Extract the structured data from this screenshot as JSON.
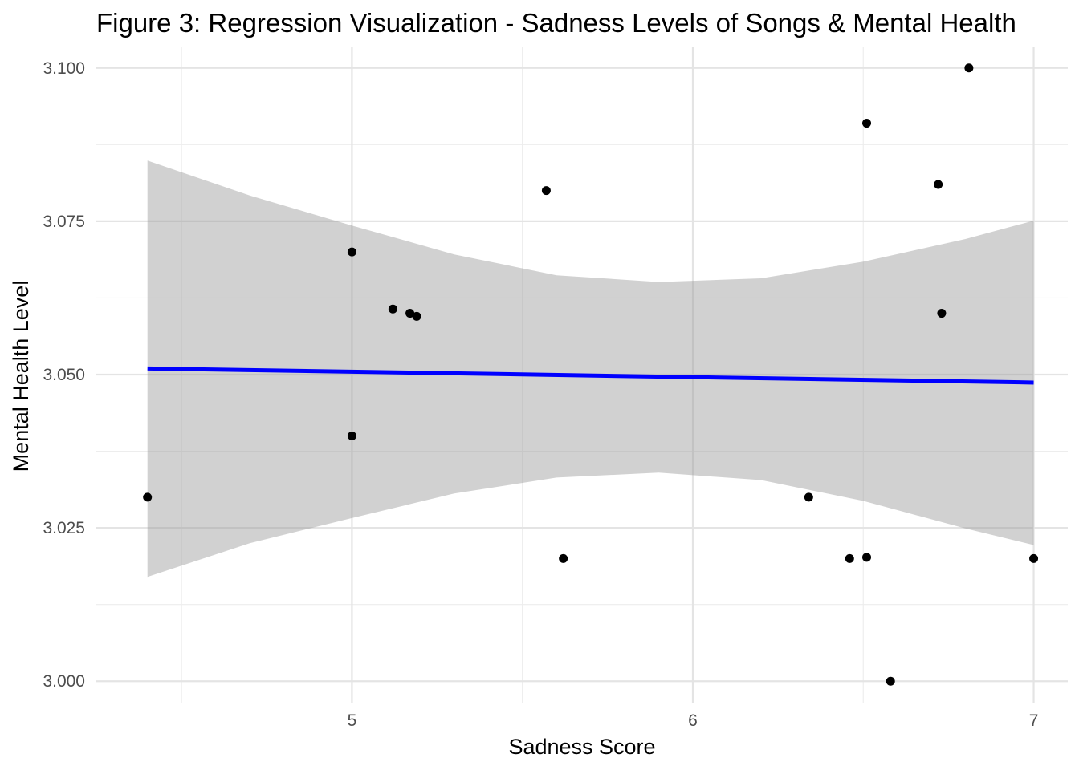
{
  "chart_data": {
    "type": "scatter",
    "title": "Figure 3: Regression Visualization - Sadness Levels of Songs & Mental Health",
    "xlabel": "Sadness Score",
    "ylabel": "Mental Health Level",
    "xlim": [
      4.25,
      7.1
    ],
    "ylim": [
      2.9965,
      3.1035
    ],
    "x_ticks": [
      5,
      6,
      7
    ],
    "x_tick_labels": [
      "5",
      "6",
      "7"
    ],
    "x_minor_ticks": [
      4.5,
      5.5,
      6.5
    ],
    "y_ticks": [
      3.0,
      3.025,
      3.05,
      3.075,
      3.1
    ],
    "y_tick_labels": [
      "3.000",
      "3.025",
      "3.050",
      "3.075",
      "3.100"
    ],
    "y_minor_ticks": [
      3.0125,
      3.0375,
      3.0625,
      3.0875
    ],
    "grid": true,
    "legend": "none",
    "points": {
      "x": [
        4.4,
        5.0,
        5.0,
        5.12,
        5.17,
        5.19,
        5.57,
        5.62,
        6.34,
        6.46,
        6.51,
        6.51,
        6.58,
        6.72,
        6.73,
        6.81,
        7.0
      ],
      "y": [
        3.03,
        3.07,
        3.04,
        3.0607,
        3.06,
        3.0595,
        3.08,
        3.02,
        3.03,
        3.02,
        3.0202,
        3.091,
        3.0,
        3.081,
        3.06,
        3.1,
        3.02
      ]
    },
    "regression": {
      "x": [
        4.4,
        7.0
      ],
      "y": [
        3.051,
        3.0487
      ]
    },
    "confidence_band": {
      "x": [
        4.4,
        4.7,
        5.0,
        5.3,
        5.6,
        5.9,
        6.2,
        6.5,
        6.8,
        7.0
      ],
      "lower": [
        3.017,
        3.0225,
        3.0266,
        3.0306,
        3.0332,
        3.034,
        3.0328,
        3.0294,
        3.0249,
        3.0222
      ],
      "upper": [
        3.0849,
        3.0792,
        3.0743,
        3.0696,
        3.0662,
        3.0651,
        3.0657,
        3.0684,
        3.0721,
        3.0751
      ]
    },
    "colors": {
      "points": "#000000",
      "regression_line": "#0000ff",
      "band": "#999999",
      "grid": "#e4e4e4"
    }
  }
}
